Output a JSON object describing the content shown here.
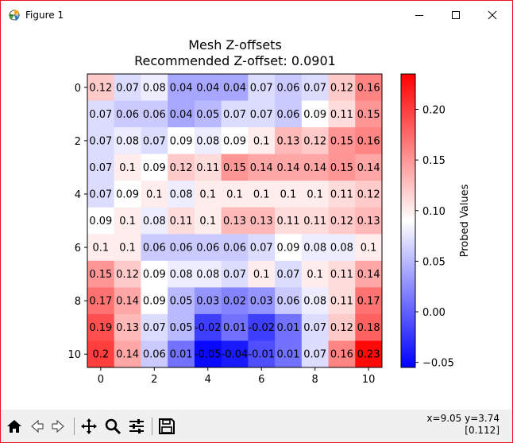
{
  "window": {
    "title": "Figure 1",
    "buttons": [
      "minimize",
      "maximize",
      "close"
    ]
  },
  "figure": {
    "title_line1": "Mesh Z-offsets",
    "title_line2": "Recommended Z-offset: 0.0901"
  },
  "chart_data": {
    "type": "heatmap",
    "title": "Mesh Z-offsets\nRecommended Z-offset: 0.0901",
    "x_ticks": [
      0,
      2,
      4,
      6,
      8,
      10
    ],
    "y_ticks": [
      0,
      2,
      4,
      6,
      8,
      10
    ],
    "colormap": "bwr",
    "vmin": -0.055,
    "vmax": 0.235,
    "colorbar_label": "Probed Values",
    "colorbar_ticks": [
      "−0.05",
      "0.00",
      "0.05",
      "0.10",
      "0.15",
      "0.20"
    ],
    "colorbar_tick_values": [
      -0.05,
      0.0,
      0.05,
      0.1,
      0.15,
      0.2
    ],
    "labels": [
      [
        "0.12",
        "0.07",
        "0.08",
        "0.04",
        "0.04",
        "0.04",
        "0.07",
        "0.06",
        "0.07",
        "0.12",
        "0.16"
      ],
      [
        "0.07",
        "0.06",
        "0.06",
        "0.04",
        "0.05",
        "0.07",
        "0.07",
        "0.06",
        "0.09",
        "0.11",
        "0.15"
      ],
      [
        "0.07",
        "0.08",
        "0.07",
        "0.09",
        "0.08",
        "0.09",
        "0.1",
        "0.13",
        "0.12",
        "0.15",
        "0.16"
      ],
      [
        "0.07",
        "0.1",
        "0.09",
        "0.12",
        "0.11",
        "0.15",
        "0.14",
        "0.14",
        "0.14",
        "0.15",
        "0.14"
      ],
      [
        "0.07",
        "0.09",
        "0.1",
        "0.08",
        "0.1",
        "0.1",
        "0.1",
        "0.1",
        "0.1",
        "0.11",
        "0.12"
      ],
      [
        "0.09",
        "0.1",
        "0.08",
        "0.11",
        "0.1",
        "0.13",
        "0.13",
        "0.11",
        "0.11",
        "0.12",
        "0.13"
      ],
      [
        "0.1",
        "0.1",
        "0.06",
        "0.06",
        "0.06",
        "0.06",
        "0.07",
        "0.09",
        "0.08",
        "0.08",
        "0.1"
      ],
      [
        "0.15",
        "0.12",
        "0.09",
        "0.08",
        "0.08",
        "0.07",
        "0.1",
        "0.07",
        "0.1",
        "0.11",
        "0.14"
      ],
      [
        "0.17",
        "0.14",
        "0.09",
        "0.05",
        "0.03",
        "0.02",
        "0.03",
        "0.06",
        "0.08",
        "0.11",
        "0.17"
      ],
      [
        "0.19",
        "0.13",
        "0.07",
        "0.05",
        "-0.02",
        "0.01",
        "-0.02",
        "0.01",
        "0.07",
        "0.12",
        "0.18"
      ],
      [
        "0.2",
        "0.14",
        "0.06",
        "0.01",
        "-0.05",
        "-0.04",
        "-0.01",
        "0.01",
        "0.07",
        "0.16",
        "0.23"
      ]
    ]
  },
  "toolbar": {
    "icons": [
      "home-icon",
      "back-icon",
      "forward-icon",
      "pan-icon",
      "zoom-icon",
      "configure-subplots-icon",
      "save-icon"
    ],
    "coords_line1": "x=9.05 y=3.74",
    "coords_line2": "[0.112]"
  }
}
